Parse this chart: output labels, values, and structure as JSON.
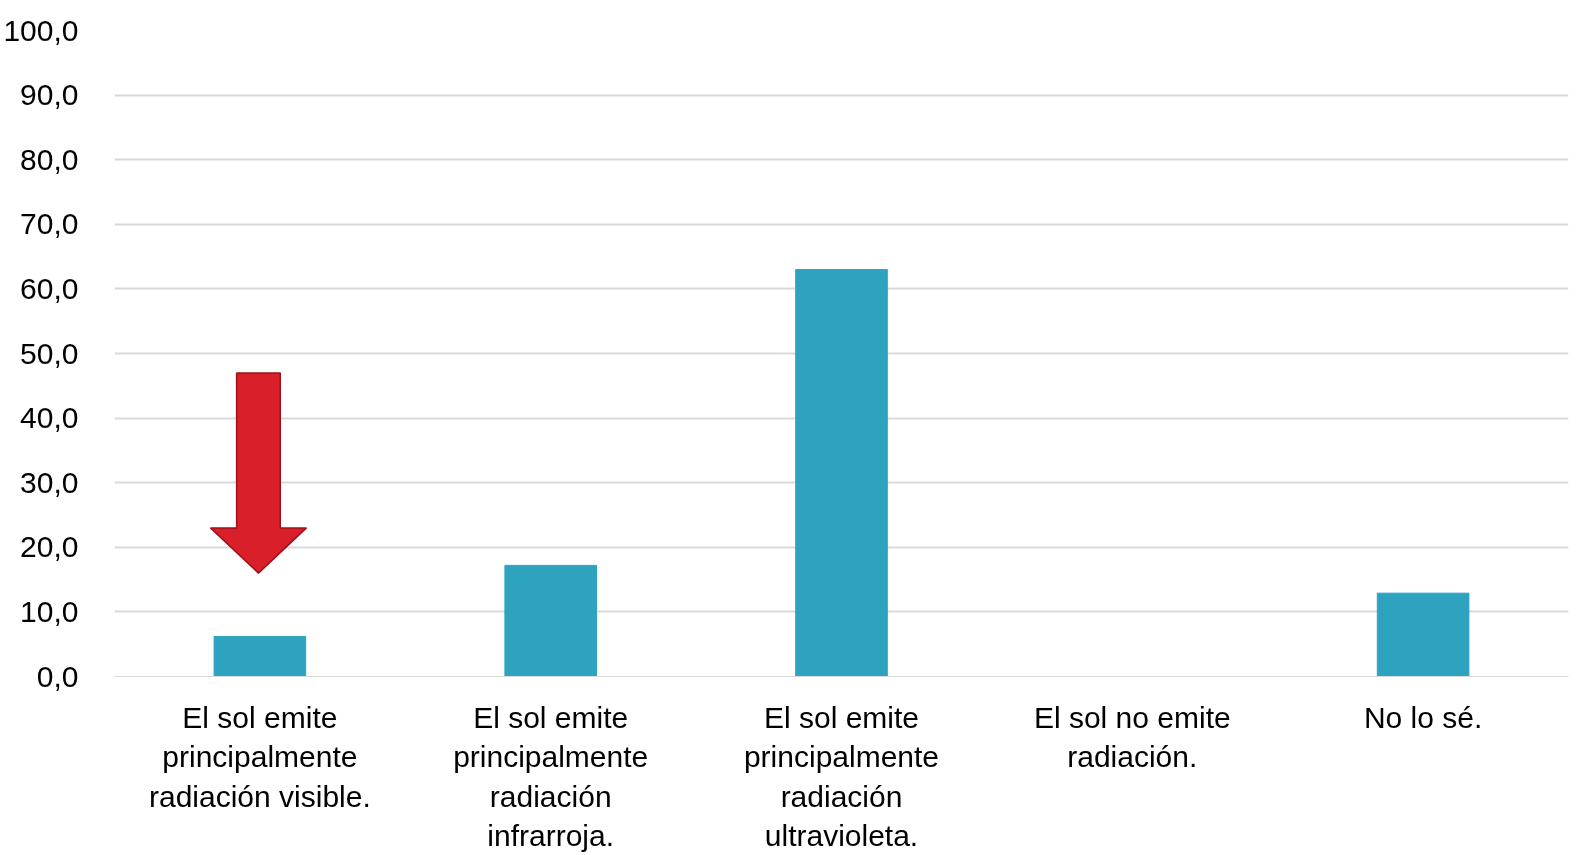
{
  "chart_data": {
    "type": "bar",
    "categories": [
      "El sol emite principalmente radiación visible.",
      "El sol emite principalmente radiación infrarroja.",
      "El sol emite principalmente radiación ultravioleta.",
      "El sol no emite radiación.",
      "No lo sé."
    ],
    "values": [
      6.2,
      17.2,
      63.0,
      0,
      12.9
    ],
    "color": "#2ea3c0",
    "ylim": [
      0,
      100
    ],
    "yticks": [
      {
        "value": 0,
        "label": "0,0"
      },
      {
        "value": 10,
        "label": "10,0"
      },
      {
        "value": 20,
        "label": "20,0"
      },
      {
        "value": 30,
        "label": "30,0"
      },
      {
        "value": 40,
        "label": "40,0"
      },
      {
        "value": 50,
        "label": "50,0"
      },
      {
        "value": 60,
        "label": "60,0"
      },
      {
        "value": 70,
        "label": "70,0"
      },
      {
        "value": 80,
        "label": "80,0"
      },
      {
        "value": 90,
        "label": "90,0"
      },
      {
        "value": 100,
        "label": "100,0"
      }
    ],
    "grid": "y"
  }
}
